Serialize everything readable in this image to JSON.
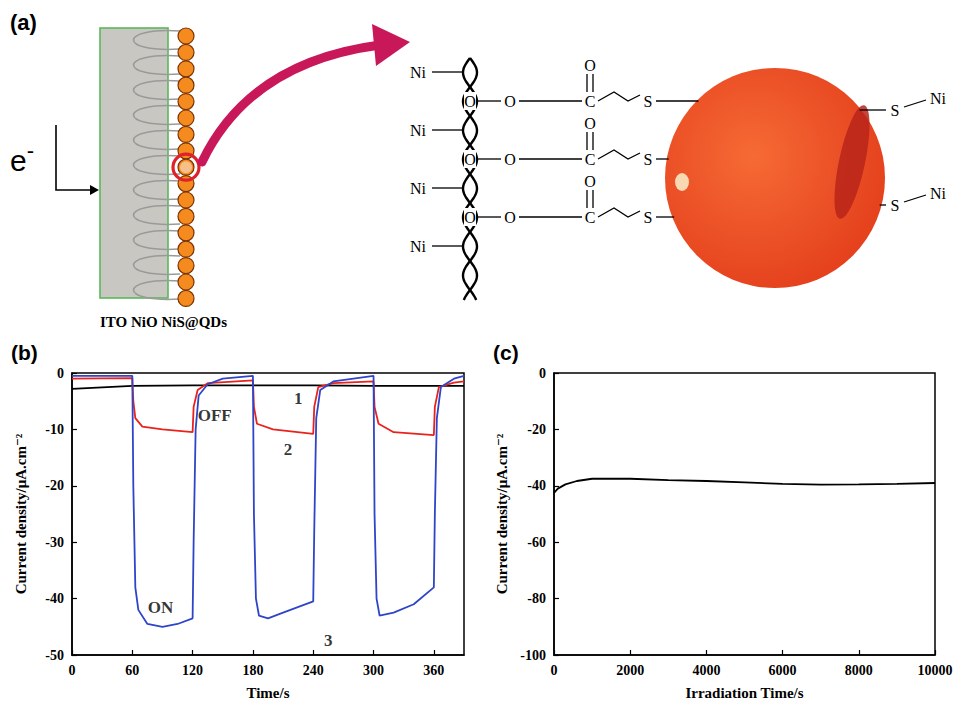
{
  "diagram": {
    "letter": "(a)",
    "electron": {
      "symbol": "e",
      "charge": "-"
    },
    "caption": "ITO NiO NiS@QDs",
    "surface_ni": [
      "Ni",
      "Ni",
      "Ni",
      "Ni"
    ],
    "bridge_o": [
      "O",
      "O",
      "O"
    ],
    "chains": [
      {
        "ester_o": "O",
        "carbon": "C",
        "carbonyl_o": "O",
        "sulfur": "S"
      },
      {
        "ester_o": "O",
        "carbon": "C",
        "carbonyl_o": "O",
        "sulfur": "S"
      },
      {
        "ester_o": "O",
        "carbon": "C",
        "carbonyl_o": "O",
        "sulfur": "S"
      }
    ],
    "qd_bonds": [
      {
        "sulfur": "S",
        "nickel": "Ni"
      },
      {
        "sulfur": "S",
        "nickel": "Ni"
      }
    ]
  },
  "chart_data": [
    {
      "type": "line",
      "title": "(b)",
      "x_label": "Time/s",
      "y_label": "Current density/μA.cm⁻²",
      "xlim": [
        0,
        390
      ],
      "xticks": [
        0,
        60,
        120,
        180,
        240,
        300,
        360
      ],
      "ylim": [
        -50,
        0
      ],
      "yticks": [
        -50,
        -40,
        -30,
        -20,
        -10,
        0
      ],
      "grid": false,
      "series": [
        {
          "color": "#000000",
          "x": [
            0,
            60,
            120,
            180,
            240,
            300,
            360,
            390
          ],
          "values": [
            -2.8,
            -2.3,
            -2.2,
            -2.2,
            -2.2,
            -2.3,
            -2.3,
            -2.3
          ]
        },
        {
          "color": "#e8231e",
          "x": [
            0,
            60,
            61,
            63,
            70,
            90,
            120,
            121,
            125,
            135,
            180,
            181,
            184,
            200,
            240,
            241,
            245,
            260,
            300,
            301,
            305,
            320,
            360,
            361,
            365,
            380,
            390
          ],
          "values": [
            -1,
            -0.9,
            -5,
            -8,
            -9.5,
            -10,
            -10.5,
            -6,
            -3,
            -1.8,
            -1.3,
            -6,
            -9,
            -10,
            -10.8,
            -6,
            -2.5,
            -1.8,
            -1.5,
            -6,
            -9,
            -10.5,
            -11,
            -6,
            -2.5,
            -1.7,
            -1.5
          ]
        },
        {
          "color": "#2f45c8",
          "x": [
            0,
            60,
            61,
            63,
            66,
            75,
            90,
            105,
            120,
            121,
            123,
            126,
            135,
            150,
            180,
            181,
            183,
            186,
            195,
            210,
            240,
            241,
            243,
            247,
            260,
            300,
            301,
            303,
            306,
            320,
            340,
            360,
            361,
            363,
            367,
            380,
            390
          ],
          "values": [
            -0.5,
            -0.5,
            -20,
            -38,
            -42,
            -44.5,
            -45,
            -44.5,
            -43.5,
            -30,
            -10,
            -4,
            -2,
            -1,
            -0.5,
            -25,
            -40,
            -43,
            -43.5,
            -42.5,
            -40.5,
            -28,
            -8,
            -3,
            -1.5,
            -0.5,
            -25,
            -40,
            -43,
            -42.5,
            -41,
            -38,
            -25,
            -8,
            -2.5,
            -1,
            -0.5
          ]
        }
      ],
      "annotations": [
        {
          "text": "1",
          "x": 225,
          "y": -4.5
        },
        {
          "text": "OFF",
          "x": 142,
          "y": -7.5
        },
        {
          "text": "2",
          "x": 215,
          "y": -13.5
        },
        {
          "text": "ON",
          "x": 88,
          "y": -41.5
        },
        {
          "text": "3",
          "x": 255,
          "y": -47.5
        }
      ]
    },
    {
      "type": "line",
      "title": "(c)",
      "x_label": "Irradiation Time/s",
      "y_label": "Current density/μA.cm⁻²",
      "xlim": [
        0,
        10000
      ],
      "xticks": [
        0,
        2000,
        4000,
        6000,
        8000,
        10000
      ],
      "ylim": [
        -100,
        0
      ],
      "yticks": [
        -100,
        -80,
        -60,
        -40,
        -20,
        0
      ],
      "grid": false,
      "series": [
        {
          "color": "#000000",
          "x": [
            0,
            100,
            300,
            600,
            1000,
            2000,
            3000,
            4000,
            5000,
            6000,
            7000,
            8000,
            9000,
            10000
          ],
          "values": [
            -42.5,
            -41,
            -39.5,
            -38.3,
            -37.5,
            -37.5,
            -38,
            -38.3,
            -38.8,
            -39.3,
            -39.6,
            -39.5,
            -39.3,
            -39
          ]
        }
      ]
    }
  ]
}
